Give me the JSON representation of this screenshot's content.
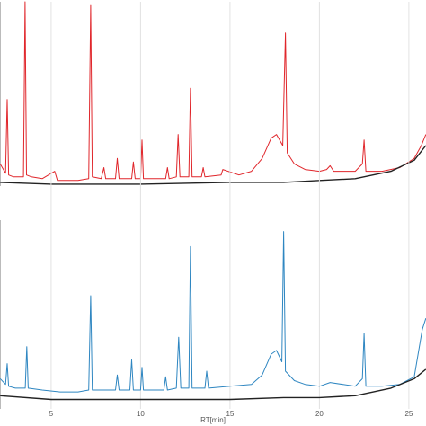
{
  "chart_data": [
    {
      "type": "line",
      "xlim": [
        2.14,
        25.96
      ],
      "ylim": [
        0,
        100
      ],
      "series": [
        {
          "color": "#e0262b",
          "x": [
            2.15,
            2.45,
            2.54,
            2.62,
            2.9,
            3.45,
            3.54,
            3.62,
            3.9,
            4.5,
            5.2,
            5.35,
            6.5,
            7.1,
            7.21,
            7.3,
            7.8,
            7.95,
            8.05,
            8.6,
            8.7,
            8.8,
            9.5,
            9.6,
            9.7,
            10.0,
            10.08,
            10.16,
            11.4,
            11.5,
            11.6,
            12.0,
            12.1,
            12.2,
            12.7,
            12.79,
            12.88,
            13.4,
            13.5,
            13.6,
            14.5,
            14.6,
            15.5,
            16.2,
            16.8,
            17.3,
            17.6,
            17.95,
            18.1,
            18.2,
            18.6,
            19.2,
            20,
            20.4,
            20.6,
            20.8,
            22,
            22.4,
            22.5,
            22.6,
            23.5,
            24.5,
            25.3,
            25.7,
            25.95
          ],
          "values": [
            12,
            7,
            47,
            6,
            5,
            5,
            100,
            6,
            5,
            4,
            8,
            3,
            3,
            4,
            98,
            5,
            4,
            10,
            4,
            4,
            15,
            4,
            4,
            13,
            4,
            4,
            25,
            4,
            4,
            10,
            4,
            5,
            28,
            5,
            5,
            53,
            5,
            5,
            10,
            5,
            6,
            9,
            6,
            8,
            15,
            26,
            28,
            22,
            83,
            18,
            12,
            9,
            8,
            9,
            11,
            8,
            8,
            12,
            25,
            8,
            8,
            10,
            15,
            22,
            28
          ]
        },
        {
          "color": "#222222",
          "x": [
            2.15,
            5,
            10,
            15,
            18,
            20,
            22,
            24,
            25.3,
            25.95
          ],
          "values": [
            2,
            1,
            1,
            2,
            2,
            3,
            4,
            8,
            14,
            22
          ]
        }
      ]
    },
    {
      "type": "line",
      "xlim": [
        2.14,
        25.96
      ],
      "ylim": [
        0,
        100
      ],
      "xticks": [
        5,
        10,
        15,
        20,
        25
      ],
      "xlabel": "RT[min]",
      "grid": true,
      "series": [
        {
          "color": "#2e86c1",
          "x": [
            2.15,
            2.45,
            2.54,
            2.62,
            3.0,
            3.55,
            3.64,
            3.72,
            4.5,
            5.5,
            6.5,
            7.1,
            7.21,
            7.3,
            8.0,
            8.6,
            8.7,
            8.8,
            9.4,
            9.5,
            9.6,
            10.0,
            10.08,
            10.16,
            11.3,
            11.4,
            11.5,
            12.0,
            12.13,
            12.25,
            12.7,
            12.79,
            12.88,
            13.6,
            13.7,
            13.8,
            15.0,
            16.2,
            16.8,
            17.3,
            17.6,
            17.9,
            18.0,
            18.1,
            18.6,
            19.2,
            20,
            20.6,
            22,
            22.4,
            22.5,
            22.6,
            23.5,
            24.5,
            25.3,
            25.75,
            25.95
          ],
          "values": [
            16,
            13,
            24,
            12,
            11,
            11,
            33,
            11,
            10,
            9,
            9,
            10,
            60,
            10,
            10,
            10,
            18,
            10,
            10,
            26,
            10,
            10,
            22,
            10,
            10,
            17,
            10,
            11,
            38,
            11,
            11,
            86,
            11,
            11,
            20,
            11,
            12,
            13,
            18,
            29,
            31,
            25,
            94,
            20,
            15,
            13,
            12,
            14,
            12,
            16,
            40,
            12,
            12,
            13,
            17,
            42,
            48
          ]
        },
        {
          "color": "#222222",
          "x": [
            2.15,
            5,
            10,
            15,
            18,
            20,
            22,
            24,
            25.3,
            25.95
          ],
          "values": [
            7,
            5,
            5,
            5,
            6,
            6,
            7,
            11,
            16,
            21
          ]
        }
      ]
    }
  ]
}
